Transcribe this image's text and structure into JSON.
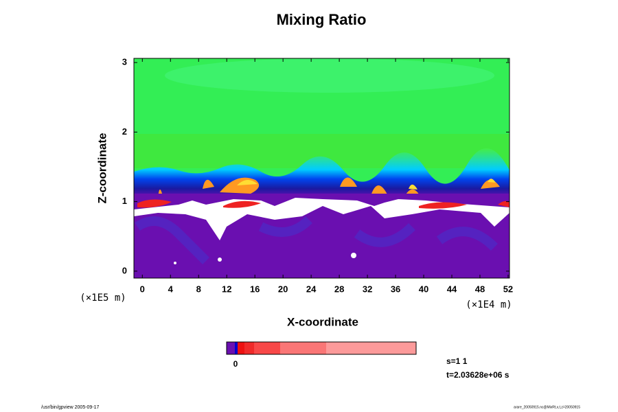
{
  "chart_data": {
    "type": "contour",
    "title": "Mixing Ratio",
    "x_label": "X-coordinate",
    "y_label": "Z-coordinate",
    "x_unit": "(×1E4 m)",
    "y_unit": "(×1E5 m)",
    "xlim": [
      -1.2,
      52.2
    ],
    "ylim": [
      -0.1,
      3.06
    ],
    "xticks": [
      0,
      4,
      8,
      12,
      16,
      20,
      24,
      28,
      32,
      36,
      40,
      44,
      48,
      52
    ],
    "yticks": [
      0,
      1,
      2,
      3
    ],
    "colorbar_ticks": [
      0
    ],
    "annotations": [
      "s=1 1",
      "t=2.03628e+06 s"
    ],
    "footer_left": "/usr/bin/gpview 2005-09-17",
    "footer_right": "arare_20050915.nc@MixRt,x,t,z=20050915"
  }
}
